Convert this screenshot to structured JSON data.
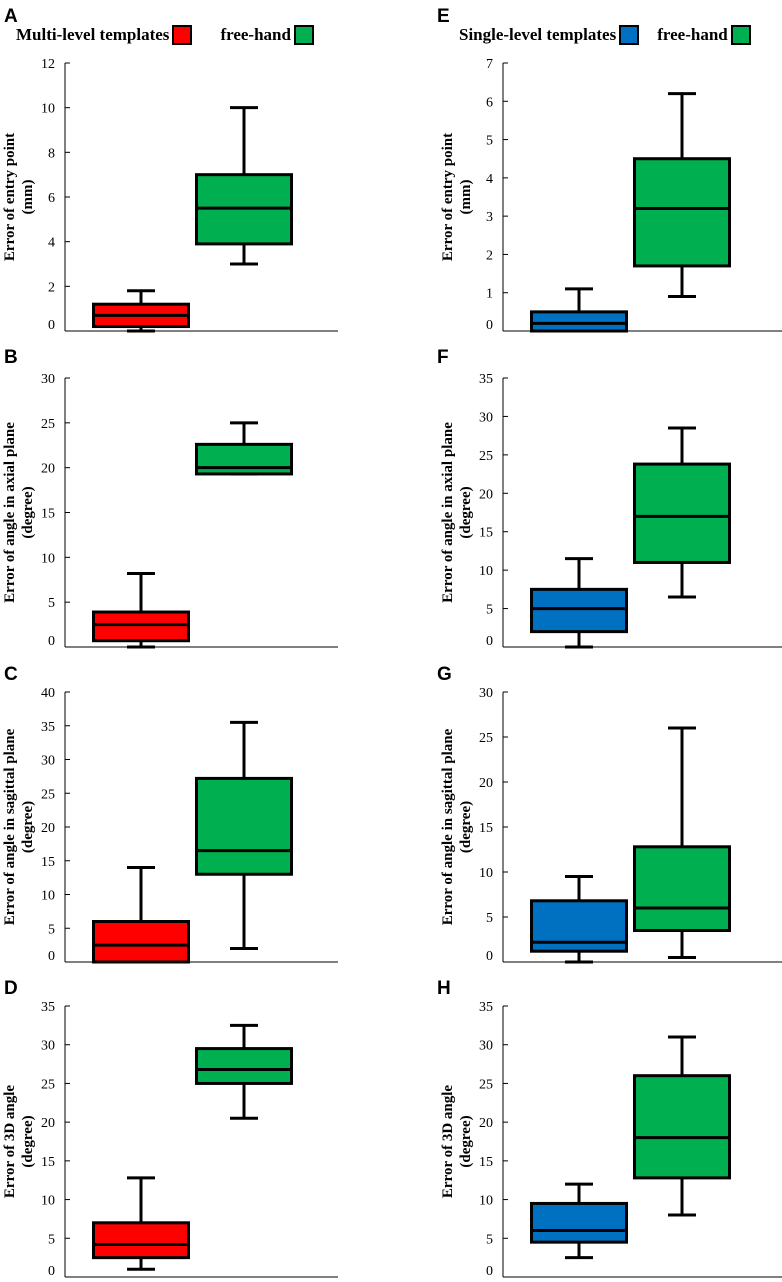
{
  "legend_left": {
    "label_a": "Multi-level templates",
    "color_a": "#ff0000",
    "label_b": "free-hand",
    "color_b": "#00b050"
  },
  "legend_right": {
    "label_a": "Single-level templates",
    "color_a": "#0070c0",
    "label_b": "free-hand",
    "color_b": "#00b050"
  },
  "chart_data": [
    {
      "panel": "A",
      "type": "boxplot",
      "ylabel_lines": [
        "Error of entry point",
        "(mm)"
      ],
      "ylim": [
        0,
        12
      ],
      "yticks": [
        0,
        2,
        4,
        6,
        8,
        10,
        12
      ],
      "series": [
        {
          "name": "Multi-level templates",
          "color": "#ff0000",
          "min": 0,
          "q1": 0.2,
          "median": 0.7,
          "q3": 1.2,
          "max": 1.8
        },
        {
          "name": "free-hand",
          "color": "#00b050",
          "min": 3.0,
          "q1": 3.9,
          "median": 5.5,
          "q3": 7.0,
          "max": 10.0
        }
      ]
    },
    {
      "panel": "B",
      "type": "boxplot",
      "ylabel_lines": [
        "Error of angle in axial plane",
        "(degree)"
      ],
      "ylim": [
        0,
        30
      ],
      "yticks": [
        0,
        5,
        10,
        15,
        20,
        25,
        30
      ],
      "series": [
        {
          "name": "Multi-level templates",
          "color": "#ff0000",
          "min": 0,
          "q1": 0.7,
          "median": 2.5,
          "q3": 3.9,
          "max": 8.2
        },
        {
          "name": "free-hand",
          "color": "#00b050",
          "min": 19.3,
          "q1": 19.3,
          "median": 20.0,
          "q3": 22.6,
          "max": 25.0
        }
      ]
    },
    {
      "panel": "C",
      "type": "boxplot",
      "ylabel_lines": [
        "Error of angle in sagittal plane",
        "(degree)"
      ],
      "ylim": [
        0,
        40
      ],
      "yticks": [
        0,
        5,
        10,
        15,
        20,
        25,
        30,
        35,
        40
      ],
      "series": [
        {
          "name": "Multi-level templates",
          "color": "#ff0000",
          "min": 0,
          "q1": 0,
          "median": 2.5,
          "q3": 6.0,
          "max": 14.0
        },
        {
          "name": "free-hand",
          "color": "#00b050",
          "min": 2.0,
          "q1": 13.0,
          "median": 16.5,
          "q3": 27.2,
          "max": 35.5
        }
      ]
    },
    {
      "panel": "D",
      "type": "boxplot",
      "ylabel_lines": [
        "Error of 3D angle",
        "(degree)"
      ],
      "ylim": [
        0,
        35
      ],
      "yticks": [
        0,
        5,
        10,
        15,
        20,
        25,
        30,
        35
      ],
      "series": [
        {
          "name": "Multi-level templates",
          "color": "#ff0000",
          "min": 1.0,
          "q1": 2.5,
          "median": 4.2,
          "q3": 7.0,
          "max": 12.8
        },
        {
          "name": "free-hand",
          "color": "#00b050",
          "min": 20.5,
          "q1": 25.0,
          "median": 26.8,
          "q3": 29.5,
          "max": 32.5
        }
      ]
    },
    {
      "panel": "E",
      "type": "boxplot",
      "ylabel_lines": [
        "Error of  entry point",
        "(mm)"
      ],
      "ylim": [
        0,
        7
      ],
      "yticks": [
        0,
        1,
        2,
        3,
        4,
        5,
        6,
        7
      ],
      "series": [
        {
          "name": "Single-level templates",
          "color": "#0070c0",
          "min": 0,
          "q1": 0,
          "median": 0.2,
          "q3": 0.5,
          "max": 1.1
        },
        {
          "name": "free-hand",
          "color": "#00b050",
          "min": 0.9,
          "q1": 1.7,
          "median": 3.2,
          "q3": 4.5,
          "max": 6.2
        }
      ]
    },
    {
      "panel": "F",
      "type": "boxplot",
      "ylabel_lines": [
        "Error of angle in axial plane",
        "(degree)"
      ],
      "ylim": [
        0,
        35
      ],
      "yticks": [
        0,
        5,
        10,
        15,
        20,
        25,
        30,
        35
      ],
      "series": [
        {
          "name": "Single-level templates",
          "color": "#0070c0",
          "min": 0,
          "q1": 2.0,
          "median": 5.0,
          "q3": 7.5,
          "max": 11.5
        },
        {
          "name": "free-hand",
          "color": "#00b050",
          "min": 6.5,
          "q1": 11.0,
          "median": 17.0,
          "q3": 23.8,
          "max": 28.5
        }
      ]
    },
    {
      "panel": "G",
      "type": "boxplot",
      "ylabel_lines": [
        "Error of angle in sagittal plane",
        "(degree)"
      ],
      "ylim": [
        0,
        30
      ],
      "yticks": [
        0,
        5,
        10,
        15,
        20,
        25,
        30
      ],
      "series": [
        {
          "name": "Single-level templates",
          "color": "#0070c0",
          "min": 0,
          "q1": 1.2,
          "median": 2.2,
          "q3": 6.8,
          "max": 9.5
        },
        {
          "name": "free-hand",
          "color": "#00b050",
          "min": 0.5,
          "q1": 3.5,
          "median": 6.0,
          "q3": 12.8,
          "max": 26.0
        }
      ]
    },
    {
      "panel": "H",
      "type": "boxplot",
      "ylabel_lines": [
        "Error of 3D angle",
        "(degree)"
      ],
      "ylim": [
        0,
        35
      ],
      "yticks": [
        0,
        5,
        10,
        15,
        20,
        25,
        30,
        35
      ],
      "series": [
        {
          "name": "Single-level templates",
          "color": "#0070c0",
          "min": 2.5,
          "q1": 4.5,
          "median": 6.0,
          "q3": 9.5,
          "max": 12.0
        },
        {
          "name": "free-hand",
          "color": "#00b050",
          "min": 8.0,
          "q1": 12.8,
          "median": 18.0,
          "q3": 26.0,
          "max": 31.0
        }
      ]
    }
  ]
}
